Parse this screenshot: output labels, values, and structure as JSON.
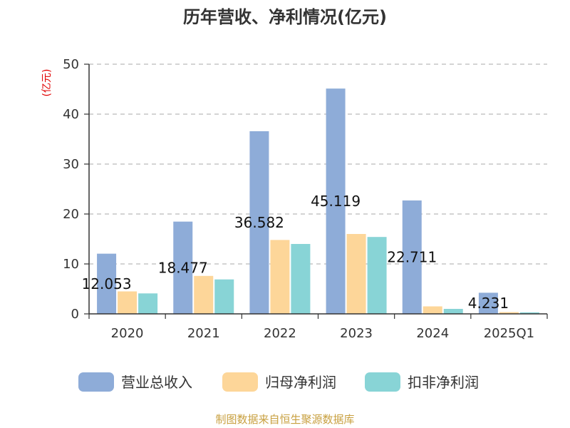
{
  "chart_data": {
    "type": "bar",
    "title": "历年营收、净利情况(亿元)",
    "ylabel": "(亿元)",
    "xlabel": "",
    "categories": [
      "2020",
      "2021",
      "2022",
      "2023",
      "2024",
      "2025Q1"
    ],
    "ylim": [
      0,
      50
    ],
    "yticks": [
      0,
      10,
      20,
      30,
      40,
      50
    ],
    "grid": true,
    "legend_position": "bottom",
    "series": [
      {
        "name": "营业总收入",
        "color": "#8eacd8",
        "values": [
          12.053,
          18.477,
          36.582,
          45.119,
          22.711,
          4.231
        ]
      },
      {
        "name": "归母净利润",
        "color": "#fdd699",
        "values": [
          4.5,
          7.6,
          14.8,
          16.0,
          1.5,
          0.35
        ]
      },
      {
        "name": "扣非净利润",
        "color": "#88d4d6",
        "values": [
          4.1,
          6.9,
          14.0,
          15.4,
          1.0,
          0.3
        ]
      }
    ],
    "data_labels": [
      "12.053",
      "18.477",
      "36.582",
      "45.119",
      "22.711",
      "4.231"
    ]
  },
  "source": "制图数据来自恒生聚源数据库"
}
